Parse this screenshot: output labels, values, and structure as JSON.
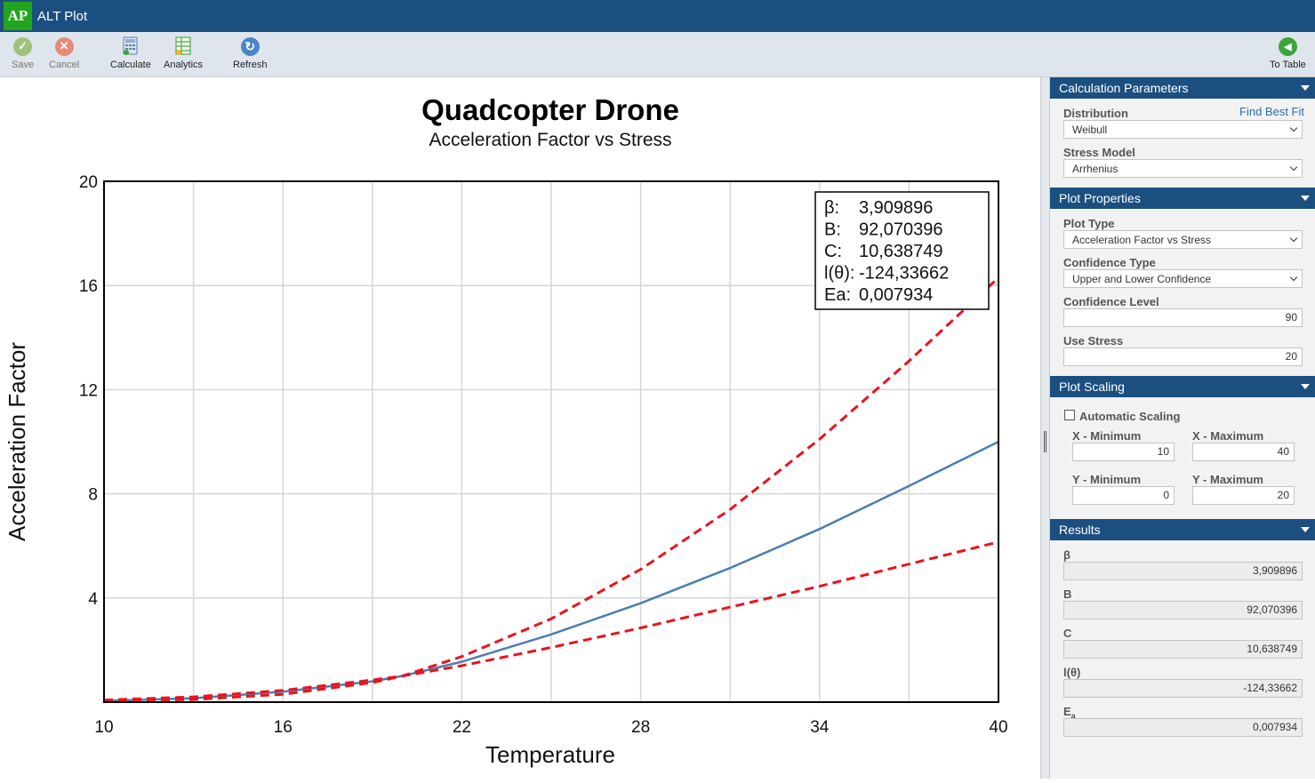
{
  "app": {
    "logo": "AP",
    "title": "ALT Plot"
  },
  "toolbar": {
    "save": "Save",
    "cancel": "Cancel",
    "calculate": "Calculate",
    "analytics": "Analytics",
    "refresh": "Refresh",
    "to_table": "To Table"
  },
  "chart_data": {
    "type": "line",
    "title": "Quadcopter Drone",
    "subtitle": "Acceleration Factor vs Stress",
    "xlabel": "Temperature",
    "ylabel": "Acceleration Factor",
    "xlim": [
      10,
      40
    ],
    "ylim": [
      0,
      20
    ],
    "x_ticks": [
      "10",
      "16",
      "22",
      "28",
      "34",
      "40"
    ],
    "y_ticks": [
      "4",
      "8",
      "12",
      "16",
      "20"
    ],
    "grid": true,
    "series": [
      {
        "name": "Acceleration Factor",
        "style": "solid",
        "color": "#4a7fb0",
        "x": [
          10,
          13,
          16,
          19,
          20,
          22,
          25,
          28,
          31,
          34,
          37,
          40
        ],
        "y": [
          0.05,
          0.15,
          0.4,
          0.8,
          1.0,
          1.55,
          2.6,
          3.8,
          5.15,
          6.65,
          8.3,
          10.0
        ]
      },
      {
        "name": "Upper Confidence",
        "style": "dashed",
        "color": "#e8141c",
        "x": [
          10,
          13,
          16,
          19,
          20,
          22,
          25,
          28,
          31,
          34,
          37,
          40
        ],
        "y": [
          0.03,
          0.1,
          0.3,
          0.75,
          1.0,
          1.75,
          3.2,
          5.1,
          7.4,
          10.1,
          13.1,
          16.3
        ]
      },
      {
        "name": "Lower Confidence",
        "style": "dashed",
        "color": "#e8141c",
        "x": [
          10,
          13,
          16,
          19,
          20,
          22,
          25,
          28,
          31,
          34,
          37,
          40
        ],
        "y": [
          0.08,
          0.2,
          0.45,
          0.85,
          1.0,
          1.4,
          2.1,
          2.85,
          3.65,
          4.45,
          5.3,
          6.15
        ]
      }
    ],
    "legend": [
      {
        "label": "β:",
        "value": "3,909896"
      },
      {
        "label": "B:",
        "value": "92,070396"
      },
      {
        "label": "C:",
        "value": "10,638749"
      },
      {
        "label": "l(θ):",
        "value": "-124,33662"
      },
      {
        "label": "Ea:",
        "value": "0,007934"
      }
    ]
  },
  "panel": {
    "calc_params": {
      "title": "Calculation Parameters",
      "distribution_label": "Distribution",
      "distribution": "Weibull",
      "find_best_fit": "Find Best Fit",
      "stress_model_label": "Stress Model",
      "stress_model": "Arrhenius"
    },
    "plot_props": {
      "title": "Plot Properties",
      "plot_type_label": "Plot Type",
      "plot_type": "Acceleration Factor vs Stress",
      "conf_type_label": "Confidence Type",
      "conf_type": "Upper and Lower Confidence",
      "conf_level_label": "Confidence Level",
      "conf_level": "90",
      "use_stress_label": "Use Stress",
      "use_stress": "20"
    },
    "plot_scaling": {
      "title": "Plot Scaling",
      "auto_label": "Automatic Scaling",
      "xmin_label": "X - Minimum",
      "xmin": "10",
      "xmax_label": "X - Maximum",
      "xmax": "40",
      "ymin_label": "Y - Minimum",
      "ymin": "0",
      "ymax_label": "Y - Maximum",
      "ymax": "20"
    },
    "results": {
      "title": "Results",
      "beta_label": "β",
      "beta": "3,909896",
      "b_label": "B",
      "b": "92,070396",
      "c_label": "C",
      "c": "10,638749",
      "ltheta_label": "l(θ)",
      "ltheta": "-124,33662",
      "ea_label": "E",
      "ea_sub": "a",
      "ea": "0,007934"
    }
  }
}
